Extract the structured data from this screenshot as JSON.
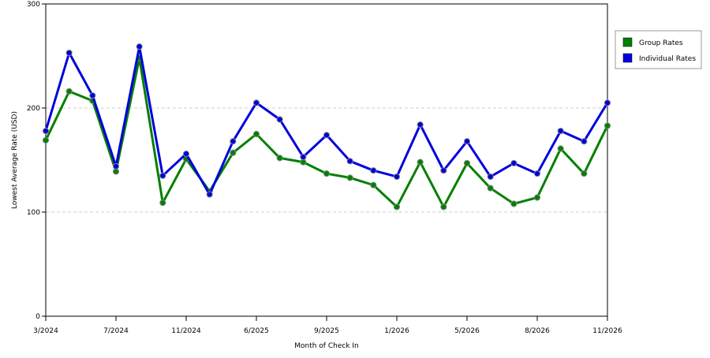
{
  "chart_data": {
    "type": "line",
    "title": "",
    "xlabel": "Month of Check In",
    "ylabel": "Lowest Average Rate (USD)",
    "ylim": [
      0,
      300
    ],
    "yticks": [
      0,
      100,
      200,
      300
    ],
    "grid": "horizontal dashed at 100 and 200",
    "legend_position": "right",
    "x_tick_labels": [
      "3/2024",
      "7/2024",
      "11/2024",
      "6/2025",
      "9/2025",
      "1/2026",
      "5/2026",
      "8/2026",
      "11/2026"
    ],
    "x_tick_indices": [
      0,
      3,
      6,
      9,
      12,
      15,
      18,
      21,
      24
    ],
    "series": [
      {
        "name": "Group Rates",
        "color": "#008000",
        "values": [
          169,
          216,
          207,
          139,
          248,
          109,
          151,
          120,
          157,
          175,
          152,
          148,
          137,
          133,
          126,
          105,
          148,
          105,
          147,
          123,
          108,
          114,
          161,
          137,
          183
        ]
      },
      {
        "name": "Individual Rates",
        "color": "#0000dd",
        "values": [
          178,
          253,
          212,
          144,
          259,
          135,
          156,
          117,
          168,
          205,
          189,
          153,
          174,
          149,
          140,
          134,
          184,
          140,
          168,
          134,
          147,
          137,
          178,
          168,
          205
        ]
      }
    ]
  }
}
